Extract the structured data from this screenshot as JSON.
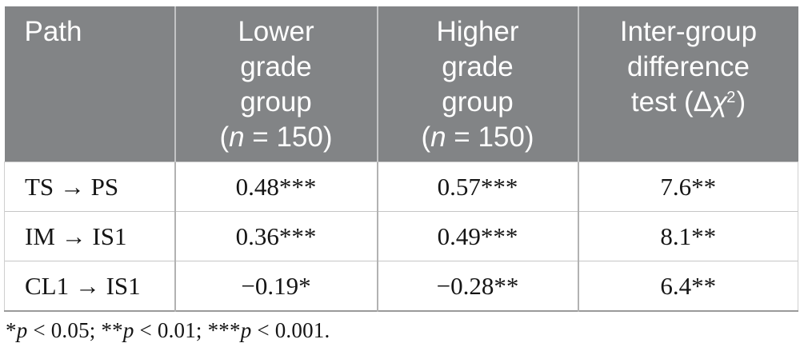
{
  "table": {
    "header": {
      "path": {
        "label": "Path"
      },
      "lower": {
        "line1": "Lower",
        "line2": "grade",
        "line3": "group",
        "n_open": "(",
        "n_var": "n",
        "n_rest": " = 150)"
      },
      "higher": {
        "line1": "Higher",
        "line2": "grade",
        "line3": "group",
        "n_open": "(",
        "n_var": "n",
        "n_rest": " = 150)"
      },
      "diff": {
        "line1": "Inter-group",
        "line2": "difference",
        "line3_prefix": "test (",
        "delta": "Δ",
        "chi": "χ",
        "sup": "2",
        "close": ")"
      }
    },
    "rows": [
      {
        "path": "TS → PS",
        "lower": "0.48***",
        "higher": "0.57***",
        "diff": "7.6**"
      },
      {
        "path": "IM → IS1",
        "lower": "0.36***",
        "higher": "0.49***",
        "diff": "8.1**"
      },
      {
        "path": "CL1 → IS1",
        "lower": "−0.19*",
        "higher": "−0.28**",
        "diff": "6.4**"
      }
    ],
    "colors": {
      "header_bg": "#828486",
      "header_text": "#ffffff",
      "body_text": "#151515",
      "row_grid": "#c6c6c6",
      "column_grid": "#b2b2b2",
      "bottom_border": "#9a9a9a"
    }
  },
  "footnote": {
    "parts": [
      {
        "stars": "*",
        "p": "p",
        "rest": " < 0.05; "
      },
      {
        "stars": "**",
        "p": "p",
        "rest": " < 0.01; "
      },
      {
        "stars": "***",
        "p": "p",
        "rest": " < 0.001."
      }
    ]
  }
}
